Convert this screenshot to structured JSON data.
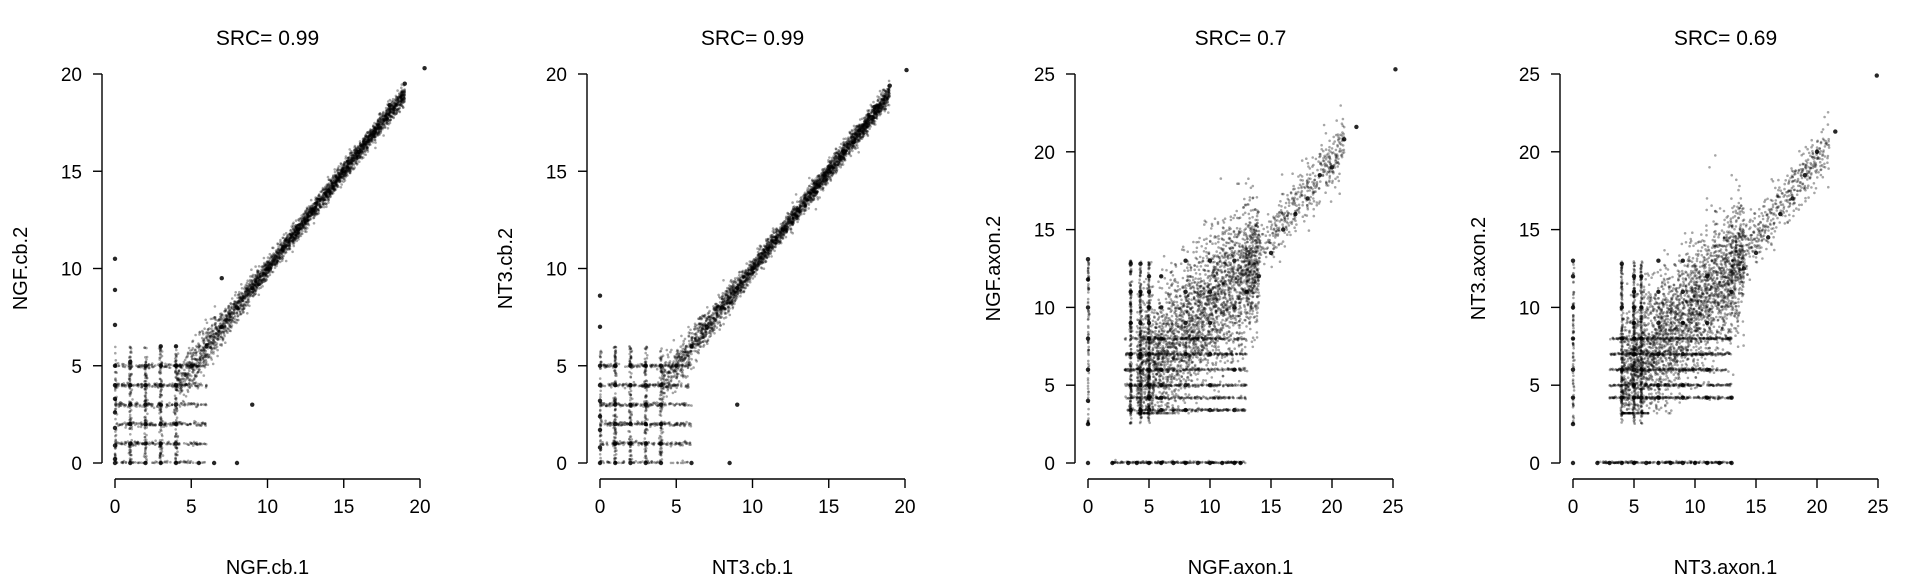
{
  "chart_data": [
    {
      "type": "scatter",
      "title": "SRC= 0.99",
      "xlabel": "NGF.cb.1",
      "ylabel": "NGF.cb.2",
      "xlim": [
        0,
        20
      ],
      "ylim": [
        0,
        20
      ],
      "xticks": [
        0,
        5,
        10,
        15,
        20
      ],
      "yticks": [
        0,
        5,
        10,
        15,
        20
      ],
      "grid": false,
      "series": [
        {
          "points": [
            [
              0,
              10.5
            ],
            [
              0,
              8.9
            ],
            [
              0,
              7.1
            ],
            [
              0,
              5.0
            ],
            [
              0,
              4.0
            ],
            [
              0,
              3.3
            ],
            [
              0,
              2.6
            ],
            [
              0,
              1.8
            ],
            [
              0,
              0.9
            ],
            [
              0,
              0.2
            ],
            [
              0,
              0
            ],
            [
              1.0,
              0
            ],
            [
              1.0,
              1.0
            ],
            [
              1.0,
              2.0
            ],
            [
              1.0,
              3.0
            ],
            [
              1.0,
              4.0
            ],
            [
              1.0,
              5.2
            ],
            [
              2.0,
              0
            ],
            [
              2.0,
              1.0
            ],
            [
              2.0,
              2.0
            ],
            [
              2.0,
              3.0
            ],
            [
              2.0,
              4.0
            ],
            [
              2.0,
              5.0
            ],
            [
              3.0,
              0
            ],
            [
              3.0,
              1.0
            ],
            [
              3.0,
              2.0
            ],
            [
              3.0,
              3.0
            ],
            [
              3.0,
              4.0
            ],
            [
              3.0,
              5.0
            ],
            [
              3.0,
              6.0
            ],
            [
              4.0,
              0
            ],
            [
              4.0,
              1.0
            ],
            [
              4.0,
              2.0
            ],
            [
              4.0,
              3.0
            ],
            [
              4.0,
              4.0
            ],
            [
              4.0,
              5.0
            ],
            [
              4.0,
              6.0
            ],
            [
              5.5,
              0
            ],
            [
              6.5,
              0
            ],
            [
              7.0,
              9.5
            ],
            [
              8.0,
              0
            ],
            [
              9.0,
              3.0
            ],
            [
              5,
              5
            ],
            [
              6,
              6
            ],
            [
              7,
              7
            ],
            [
              8,
              8
            ],
            [
              9,
              9
            ],
            [
              10,
              10
            ],
            [
              11,
              11
            ],
            [
              12,
              12
            ],
            [
              13,
              13
            ],
            [
              14,
              14
            ],
            [
              15,
              15
            ],
            [
              16,
              16
            ],
            [
              17,
              17
            ],
            [
              18,
              18.4
            ],
            [
              19,
              19.5
            ],
            [
              20.3,
              20.3
            ]
          ]
        }
      ]
    },
    {
      "type": "scatter",
      "title": "SRC= 0.99",
      "xlabel": "NT3.cb.1",
      "ylabel": "NT3.cb.2",
      "xlim": [
        0,
        20
      ],
      "ylim": [
        0,
        20
      ],
      "xticks": [
        0,
        5,
        10,
        15,
        20
      ],
      "yticks": [
        0,
        5,
        10,
        15,
        20
      ],
      "grid": false,
      "series": [
        {
          "points": [
            [
              0,
              8.6
            ],
            [
              0,
              7.0
            ],
            [
              0,
              5.0
            ],
            [
              0,
              4.0
            ],
            [
              0,
              3.2
            ],
            [
              0,
              2.4
            ],
            [
              0,
              1.7
            ],
            [
              0,
              0.8
            ],
            [
              0,
              0
            ],
            [
              1.0,
              0
            ],
            [
              1.0,
              1.0
            ],
            [
              1.0,
              2.0
            ],
            [
              1.0,
              3.0
            ],
            [
              1.0,
              4.0
            ],
            [
              1.0,
              5.0
            ],
            [
              2.0,
              0
            ],
            [
              2.0,
              1.0
            ],
            [
              2.0,
              2.0
            ],
            [
              2.0,
              3.0
            ],
            [
              2.0,
              4.0
            ],
            [
              2.0,
              5.0
            ],
            [
              3.0,
              0
            ],
            [
              3.0,
              1.0
            ],
            [
              3.0,
              2.0
            ],
            [
              3.0,
              3.0
            ],
            [
              3.0,
              4.0
            ],
            [
              3.0,
              5.0
            ],
            [
              4.0,
              0
            ],
            [
              4.0,
              1.0
            ],
            [
              4.0,
              2.0
            ],
            [
              4.0,
              3.0
            ],
            [
              4.0,
              4.0
            ],
            [
              4.0,
              5.0
            ],
            [
              6.0,
              0
            ],
            [
              8.5,
              0
            ],
            [
              9.0,
              3.0
            ],
            [
              5,
              5
            ],
            [
              6,
              6
            ],
            [
              7,
              7
            ],
            [
              8,
              8
            ],
            [
              9,
              9
            ],
            [
              10,
              10
            ],
            [
              11,
              11
            ],
            [
              12,
              12
            ],
            [
              13,
              13
            ],
            [
              14,
              14
            ],
            [
              15,
              15
            ],
            [
              16,
              16
            ],
            [
              17,
              17.1
            ],
            [
              18,
              18.3
            ],
            [
              19,
              19.4
            ],
            [
              20.1,
              20.2
            ]
          ]
        }
      ]
    },
    {
      "type": "scatter",
      "title": "SRC= 0.7",
      "xlabel": "NGF.axon.1",
      "ylabel": "NGF.axon.2",
      "xlim": [
        0,
        25
      ],
      "ylim": [
        0,
        25
      ],
      "xticks": [
        0,
        5,
        10,
        15,
        20,
        25
      ],
      "yticks": [
        0,
        5,
        10,
        15,
        20,
        25
      ],
      "grid": false,
      "series": [
        {
          "points": [
            [
              0,
              13.1
            ],
            [
              0,
              11.8
            ],
            [
              0,
              10.0
            ],
            [
              0,
              8.0
            ],
            [
              0,
              6.0
            ],
            [
              0,
              4.0
            ],
            [
              0,
              2.5
            ],
            [
              0,
              0
            ],
            [
              2.0,
              0
            ],
            [
              3.3,
              0
            ],
            [
              4.0,
              0
            ],
            [
              5.0,
              0
            ],
            [
              6.0,
              0
            ],
            [
              7.0,
              0
            ],
            [
              8.0,
              0
            ],
            [
              9.0,
              0
            ],
            [
              10.0,
              0
            ],
            [
              11.0,
              0
            ],
            [
              12.0,
              0
            ],
            [
              12.5,
              0
            ],
            [
              3.5,
              3.4
            ],
            [
              3.5,
              5.0
            ],
            [
              3.5,
              7.0
            ],
            [
              3.5,
              9.0
            ],
            [
              3.5,
              11.0
            ],
            [
              3.5,
              12.8
            ],
            [
              4.3,
              3.4
            ],
            [
              4.3,
              5.0
            ],
            [
              4.3,
              7.0
            ],
            [
              4.3,
              9.0
            ],
            [
              4.3,
              11.0
            ],
            [
              4.3,
              12.8
            ],
            [
              5.0,
              3.4
            ],
            [
              5.0,
              4.2
            ],
            [
              5.0,
              5.0
            ],
            [
              5.0,
              6.0
            ],
            [
              5.0,
              7.0
            ],
            [
              5.0,
              8.0
            ],
            [
              5.0,
              9.0
            ],
            [
              5.0,
              10.0
            ],
            [
              5.0,
              11.0
            ],
            [
              5.0,
              12.0
            ],
            [
              6.0,
              3.4
            ],
            [
              6.0,
              4.2
            ],
            [
              6.0,
              5.0
            ],
            [
              6.0,
              6.0
            ],
            [
              6.0,
              8.0
            ],
            [
              6.0,
              10.0
            ],
            [
              6.0,
              12.0
            ],
            [
              8.0,
              3.4
            ],
            [
              8.0,
              5.0
            ],
            [
              8.0,
              7.0
            ],
            [
              8.0,
              9.0
            ],
            [
              8.0,
              11.0
            ],
            [
              8.0,
              13.0
            ],
            [
              10.0,
              3.4
            ],
            [
              10.0,
              5.0
            ],
            [
              10.0,
              7.0
            ],
            [
              10.0,
              9.0
            ],
            [
              10.0,
              11.0
            ],
            [
              10.0,
              13.0
            ],
            [
              12.0,
              3.4
            ],
            [
              12.0,
              6.0
            ],
            [
              12.0,
              10.0
            ],
            [
              12.0,
              13.0
            ],
            [
              13.0,
              11.0
            ],
            [
              14.0,
              12.0
            ],
            [
              15.0,
              13.5
            ],
            [
              16.0,
              15.0
            ],
            [
              17.0,
              16.0
            ],
            [
              18.0,
              17.0
            ],
            [
              19.0,
              18.5
            ],
            [
              20.0,
              19.0
            ],
            [
              21.0,
              20.8
            ],
            [
              22.0,
              21.6
            ],
            [
              25.2,
              25.3
            ]
          ]
        }
      ]
    },
    {
      "type": "scatter",
      "title": "SRC= 0.69",
      "xlabel": "NT3.axon.1",
      "ylabel": "NT3.axon.2",
      "xlim": [
        0,
        25
      ],
      "ylim": [
        0,
        25
      ],
      "xticks": [
        0,
        5,
        10,
        15,
        20,
        25
      ],
      "yticks": [
        0,
        5,
        10,
        15,
        20,
        25
      ],
      "grid": false,
      "series": [
        {
          "points": [
            [
              0,
              13.0
            ],
            [
              0,
              12.0
            ],
            [
              0,
              10.0
            ],
            [
              0,
              8.0
            ],
            [
              0,
              6.0
            ],
            [
              0,
              4.2
            ],
            [
              0,
              2.5
            ],
            [
              0,
              0
            ],
            [
              2.0,
              0
            ],
            [
              3.0,
              0
            ],
            [
              4.0,
              0
            ],
            [
              5.0,
              0
            ],
            [
              6.0,
              0
            ],
            [
              7.0,
              0
            ],
            [
              8.0,
              0
            ],
            [
              9.0,
              0
            ],
            [
              10.0,
              0
            ],
            [
              11.0,
              0
            ],
            [
              12.0,
              0
            ],
            [
              13.0,
              0
            ],
            [
              4.0,
              4.2
            ],
            [
              4.0,
              6.0
            ],
            [
              4.0,
              8.0
            ],
            [
              4.0,
              10.0
            ],
            [
              4.0,
              12.8
            ],
            [
              5.0,
              4.2
            ],
            [
              5.0,
              5.0
            ],
            [
              5.0,
              6.0
            ],
            [
              5.0,
              7.0
            ],
            [
              5.0,
              8.0
            ],
            [
              5.0,
              9.0
            ],
            [
              5.0,
              10.0
            ],
            [
              5.0,
              11.0
            ],
            [
              5.0,
              12.0
            ],
            [
              5.6,
              4.2
            ],
            [
              5.6,
              6.0
            ],
            [
              5.6,
              8.0
            ],
            [
              5.6,
              10.0
            ],
            [
              5.6,
              12.0
            ],
            [
              7.0,
              4.2
            ],
            [
              7.0,
              5.0
            ],
            [
              7.0,
              7.0
            ],
            [
              7.0,
              9.0
            ],
            [
              7.0,
              11.0
            ],
            [
              7.0,
              13.0
            ],
            [
              9.0,
              4.2
            ],
            [
              9.0,
              5.0
            ],
            [
              9.0,
              7.0
            ],
            [
              9.0,
              9.0
            ],
            [
              9.0,
              11.0
            ],
            [
              9.0,
              13.0
            ],
            [
              11.0,
              4.2
            ],
            [
              11.0,
              6.0
            ],
            [
              11.0,
              9.0
            ],
            [
              11.0,
              12.0
            ],
            [
              13.0,
              4.2
            ],
            [
              13.0,
              11.0
            ],
            [
              14.0,
              12.5
            ],
            [
              15.0,
              13.5
            ],
            [
              16.0,
              14.5
            ],
            [
              17.0,
              16.0
            ],
            [
              18.0,
              17.0
            ],
            [
              19.0,
              18.5
            ],
            [
              20.0,
              20.0
            ],
            [
              21.5,
              21.3
            ],
            [
              24.9,
              24.9
            ]
          ]
        }
      ]
    }
  ]
}
